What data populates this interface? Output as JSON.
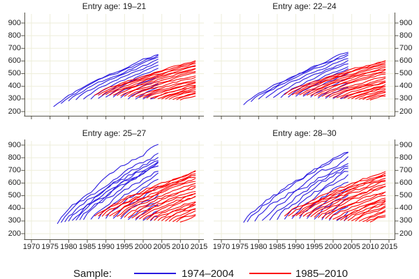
{
  "chart_data": {
    "type": "line",
    "layout": "2x2 small multiples, shared axes",
    "title": "",
    "xlabel": "",
    "ylabel": "",
    "x_ticks": [
      1970,
      1975,
      1980,
      1985,
      1990,
      1995,
      2000,
      2005,
      2010,
      2015
    ],
    "y_ticks": [
      200,
      300,
      400,
      500,
      600,
      700,
      800,
      900
    ],
    "xlim": [
      1968,
      2016.5
    ],
    "ylim": [
      170,
      975
    ],
    "grid": true,
    "encoding": "cohorts are [entry_year, value_at_entry, value_at_end_year]; yearly values follow a concave growth path between them",
    "colors": {
      "sample_1974_2004": "#2a1be0",
      "sample_1985_2010": "#fb0000",
      "grid": "#edeeda",
      "axis": "#55534a",
      "text": "#1c1c1c",
      "background": "#ffffff"
    },
    "legend": {
      "label": "Sample:",
      "position": "bottom",
      "entries": [
        {
          "label": "1974–2004",
          "color_key": "sample_1974_2004"
        },
        {
          "label": "1985–2010",
          "color_key": "sample_1985_2010"
        }
      ]
    },
    "panels": [
      {
        "title": "Entry age: 19–21",
        "series": [
          {
            "name": "1974–2004",
            "color_key": "sample_1974_2004",
            "end_year": 2004,
            "wiggle": 13,
            "cohorts": [
              [
                1976,
                240,
                655
              ],
              [
                1978,
                265,
                640
              ],
              [
                1980,
                285,
                622
              ],
              [
                1982,
                295,
                604
              ],
              [
                1984,
                300,
                586
              ],
              [
                1986,
                300,
                566
              ],
              [
                1988,
                305,
                546
              ],
              [
                1990,
                315,
                522
              ],
              [
                1992,
                315,
                482
              ],
              [
                1994,
                310,
                446
              ],
              [
                1996,
                300,
                416
              ],
              [
                1998,
                300,
                386
              ],
              [
                2000,
                300,
                352
              ],
              [
                2002,
                300,
                322
              ]
            ]
          },
          {
            "name": "1985–2010",
            "color_key": "sample_1985_2010",
            "end_year": 2014,
            "wiggle": 10,
            "cohorts": [
              [
                1987,
                330,
                600
              ],
              [
                1988,
                330,
                590
              ],
              [
                1989,
                330,
                580
              ],
              [
                1990,
                335,
                570
              ],
              [
                1991,
                330,
                558
              ],
              [
                1992,
                330,
                548
              ],
              [
                1993,
                328,
                538
              ],
              [
                1994,
                325,
                525
              ],
              [
                1995,
                322,
                508
              ],
              [
                1996,
                320,
                490
              ],
              [
                1997,
                318,
                472
              ],
              [
                1998,
                315,
                455
              ],
              [
                1999,
                312,
                442
              ],
              [
                2000,
                310,
                432
              ],
              [
                2001,
                308,
                422
              ],
              [
                2002,
                305,
                412
              ],
              [
                2003,
                305,
                402
              ],
              [
                2004,
                302,
                392
              ],
              [
                2005,
                300,
                382
              ],
              [
                2006,
                300,
                372
              ],
              [
                2007,
                298,
                360
              ],
              [
                2008,
                296,
                348
              ],
              [
                2009,
                294,
                334
              ],
              [
                2010,
                292,
                320
              ]
            ]
          }
        ]
      },
      {
        "title": "Entry age: 22–24",
        "series": [
          {
            "name": "1974–2004",
            "color_key": "sample_1974_2004",
            "end_year": 2004,
            "wiggle": 13,
            "cohorts": [
              [
                1976,
                255,
                670
              ],
              [
                1978,
                280,
                655
              ],
              [
                1980,
                300,
                640
              ],
              [
                1982,
                310,
                620
              ],
              [
                1984,
                312,
                600
              ],
              [
                1986,
                312,
                580
              ],
              [
                1988,
                315,
                555
              ],
              [
                1990,
                322,
                530
              ],
              [
                1992,
                322,
                495
              ],
              [
                1994,
                315,
                458
              ],
              [
                1996,
                308,
                425
              ],
              [
                1998,
                305,
                392
              ],
              [
                2000,
                303,
                358
              ],
              [
                2002,
                302,
                325
              ]
            ]
          },
          {
            "name": "1985–2010",
            "color_key": "sample_1985_2010",
            "end_year": 2014,
            "wiggle": 10,
            "cohorts": [
              [
                1987,
                335,
                605
              ],
              [
                1988,
                335,
                595
              ],
              [
                1989,
                333,
                585
              ],
              [
                1990,
                338,
                575
              ],
              [
                1991,
                333,
                562
              ],
              [
                1992,
                332,
                552
              ],
              [
                1993,
                330,
                542
              ],
              [
                1994,
                328,
                528
              ],
              [
                1995,
                325,
                512
              ],
              [
                1996,
                322,
                495
              ],
              [
                1997,
                320,
                476
              ],
              [
                1998,
                317,
                458
              ],
              [
                1999,
                314,
                446
              ],
              [
                2000,
                312,
                435
              ],
              [
                2001,
                310,
                424
              ],
              [
                2002,
                307,
                414
              ],
              [
                2003,
                306,
                404
              ],
              [
                2004,
                304,
                394
              ],
              [
                2005,
                302,
                384
              ],
              [
                2006,
                300,
                373
              ],
              [
                2007,
                298,
                361
              ],
              [
                2008,
                296,
                349
              ],
              [
                2009,
                294,
                336
              ],
              [
                2010,
                292,
                322
              ]
            ]
          }
        ]
      },
      {
        "title": "Entry age: 25–27",
        "series": [
          {
            "name": "1974–2004",
            "color_key": "sample_1974_2004",
            "end_year": 2004,
            "wiggle": 27,
            "cohorts": [
              [
                1977,
                280,
                905
              ],
              [
                1978,
                290,
                830
              ],
              [
                1979,
                295,
                806
              ],
              [
                1980,
                300,
                790
              ],
              [
                1981,
                305,
                774
              ],
              [
                1982,
                308,
                758
              ],
              [
                1983,
                310,
                744
              ],
              [
                1984,
                312,
                730
              ],
              [
                1986,
                315,
                700
              ],
              [
                1988,
                318,
                664
              ],
              [
                1990,
                322,
                620
              ],
              [
                1992,
                322,
                566
              ],
              [
                1994,
                318,
                510
              ],
              [
                1996,
                312,
                462
              ],
              [
                1998,
                308,
                420
              ],
              [
                2000,
                304,
                376
              ],
              [
                2002,
                302,
                336
              ]
            ]
          },
          {
            "name": "1985–2010",
            "color_key": "sample_1985_2010",
            "end_year": 2014,
            "wiggle": 18,
            "cohorts": [
              [
                1987,
                340,
                700
              ],
              [
                1988,
                340,
                688
              ],
              [
                1989,
                338,
                676
              ],
              [
                1990,
                342,
                664
              ],
              [
                1991,
                340,
                650
              ],
              [
                1992,
                338,
                636
              ],
              [
                1993,
                336,
                622
              ],
              [
                1994,
                334,
                606
              ],
              [
                1995,
                330,
                588
              ],
              [
                1996,
                327,
                568
              ],
              [
                1997,
                324,
                548
              ],
              [
                1998,
                320,
                528
              ],
              [
                1999,
                317,
                510
              ],
              [
                2000,
                314,
                494
              ],
              [
                2001,
                311,
                478
              ],
              [
                2002,
                308,
                462
              ],
              [
                2003,
                306,
                448
              ],
              [
                2004,
                304,
                434
              ],
              [
                2005,
                302,
                420
              ],
              [
                2006,
                300,
                406
              ],
              [
                2007,
                298,
                390
              ],
              [
                2008,
                296,
                374
              ],
              [
                2009,
                294,
                356
              ],
              [
                2010,
                292,
                340
              ]
            ]
          }
        ]
      },
      {
        "title": "Entry age: 28–30",
        "series": [
          {
            "name": "1974–2004",
            "color_key": "sample_1974_2004",
            "end_year": 2004,
            "wiggle": 29,
            "cohorts": [
              [
                1976,
                290,
                840
              ],
              [
                1977,
                295,
                858
              ],
              [
                1979,
                300,
                800
              ],
              [
                1981,
                305,
                775
              ],
              [
                1983,
                308,
                750
              ],
              [
                1985,
                312,
                720
              ],
              [
                1987,
                316,
                690
              ],
              [
                1989,
                320,
                655
              ],
              [
                1991,
                322,
                615
              ],
              [
                1993,
                320,
                565
              ],
              [
                1995,
                315,
                515
              ],
              [
                1997,
                310,
                465
              ],
              [
                1999,
                306,
                420
              ],
              [
                2001,
                303,
                376
              ],
              [
                2003,
                301,
                340
              ]
            ]
          },
          {
            "name": "1985–2010",
            "color_key": "sample_1985_2010",
            "end_year": 2014,
            "wiggle": 19,
            "cohorts": [
              [
                1987,
                340,
                690
              ],
              [
                1988,
                340,
                678
              ],
              [
                1989,
                338,
                666
              ],
              [
                1990,
                342,
                654
              ],
              [
                1991,
                340,
                641
              ],
              [
                1992,
                338,
                628
              ],
              [
                1993,
                336,
                614
              ],
              [
                1994,
                334,
                598
              ],
              [
                1995,
                330,
                580
              ],
              [
                1996,
                327,
                561
              ],
              [
                1997,
                324,
                542
              ],
              [
                1998,
                320,
                523
              ],
              [
                1999,
                317,
                506
              ],
              [
                2000,
                314,
                490
              ],
              [
                2001,
                311,
                474
              ],
              [
                2002,
                308,
                459
              ],
              [
                2003,
                306,
                445
              ],
              [
                2004,
                304,
                431
              ],
              [
                2005,
                302,
                417
              ],
              [
                2006,
                300,
                403
              ],
              [
                2007,
                298,
                388
              ],
              [
                2008,
                296,
                372
              ],
              [
                2009,
                294,
                354
              ],
              [
                2010,
                292,
                338
              ]
            ]
          }
        ]
      }
    ]
  }
}
